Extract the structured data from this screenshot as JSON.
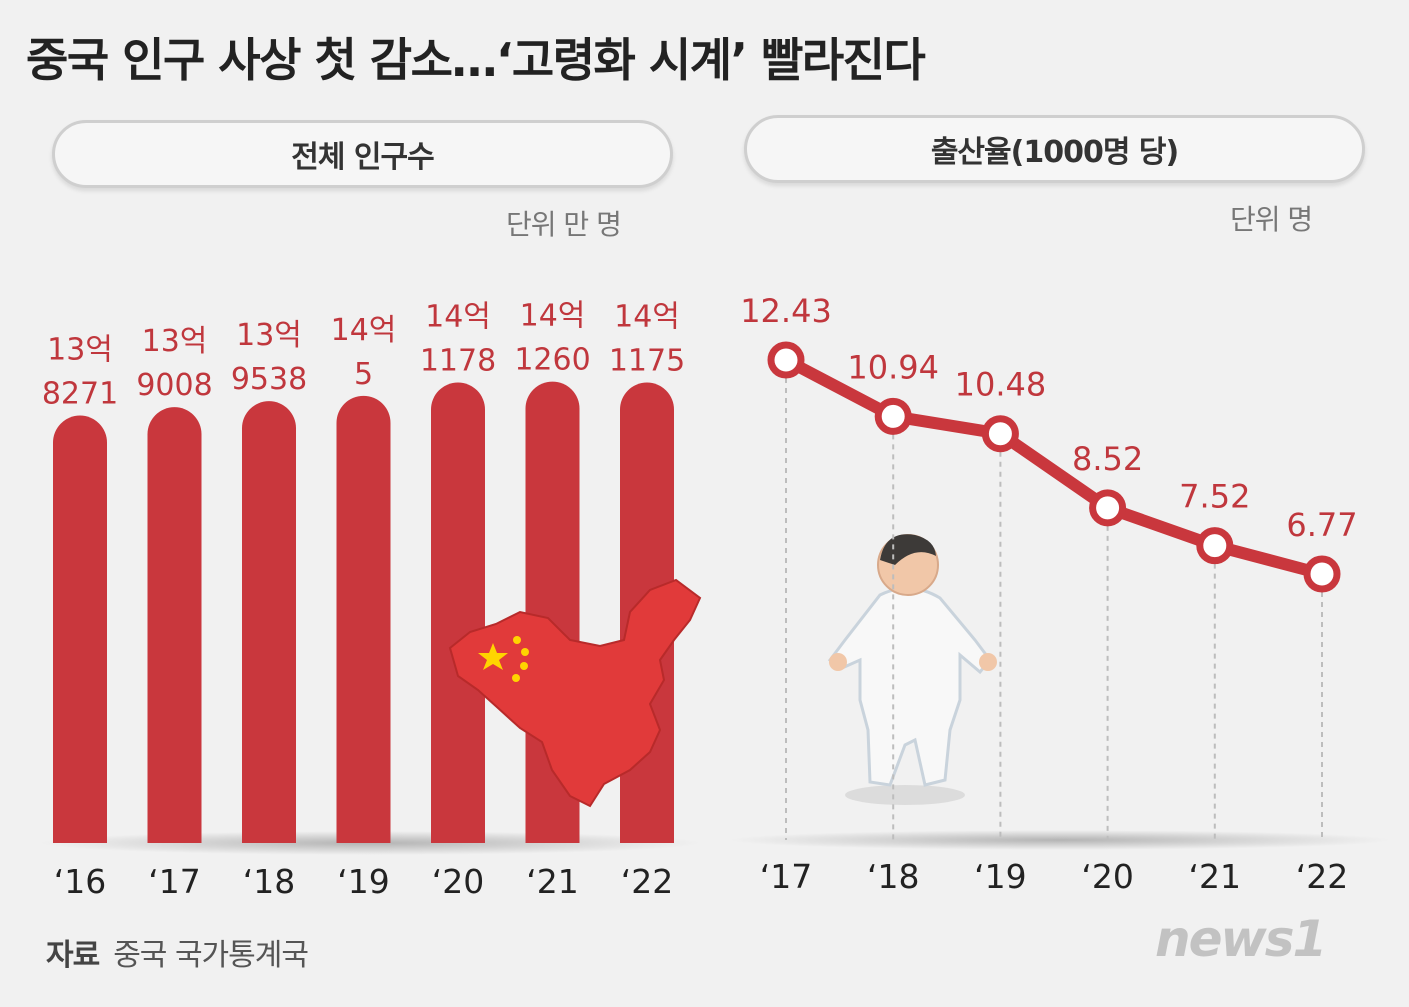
{
  "title": "중국 인구 사상 첫 감소…‘고령화 시계’ 빨라진다",
  "source_label": "자료",
  "source_value": "중국 국가통계국",
  "logo_text": "news1",
  "colors": {
    "bar": "#c9373d",
    "line": "#c9373d",
    "label": "#c0373d",
    "background": "#f1f1f1"
  },
  "chart_data": [
    {
      "type": "bar",
      "title": "전체 인구수",
      "unit": "단위 만 명",
      "categories": [
        "‘16",
        "‘17",
        "‘18",
        "‘19",
        "‘20",
        "‘21",
        "‘22"
      ],
      "labels_line1": [
        "13억",
        "13억",
        "13억",
        "14억",
        "14억",
        "14억",
        "14억"
      ],
      "labels_line2": [
        "8271",
        "9008",
        "9538",
        "5",
        "1178",
        "1260",
        "1175"
      ],
      "values": [
        138271,
        139008,
        139538,
        140005,
        141178,
        141260,
        141175
      ],
      "grid": false,
      "legend": "none"
    },
    {
      "type": "line",
      "title": "출산율(1000명 당)",
      "unit": "단위 명",
      "categories": [
        "‘17",
        "‘18",
        "‘19",
        "‘20",
        "‘21",
        "‘22"
      ],
      "values": [
        12.43,
        10.94,
        10.48,
        8.52,
        7.52,
        6.77
      ],
      "value_labels": [
        "12.43",
        "10.94",
        "10.48",
        "8.52",
        "7.52",
        "6.77"
      ],
      "grid": false,
      "legend": "none"
    }
  ]
}
